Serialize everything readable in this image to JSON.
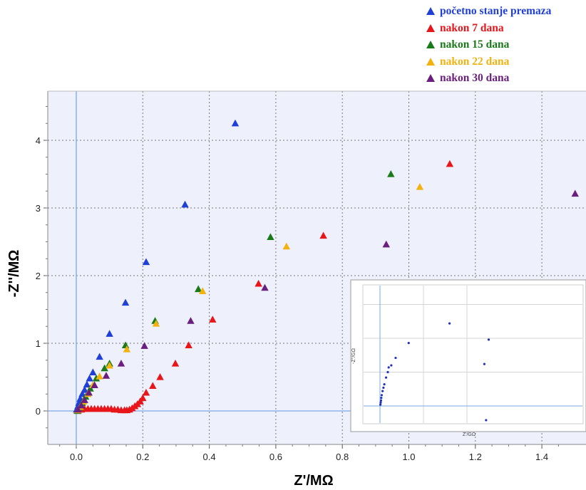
{
  "chart_data": {
    "type": "scatter",
    "xlabel": "Z'/MΩ",
    "ylabel": "-Z''/MΩ",
    "xlim": [
      -0.08,
      1.53
    ],
    "ylim": [
      -0.55,
      4.75
    ],
    "x_ticks": [
      "0.0",
      "0.2",
      "0.4",
      "0.6",
      "0.8",
      "1.0",
      "1.2",
      "1.4"
    ],
    "y_ticks": [
      "0",
      "1",
      "2",
      "3",
      "4"
    ],
    "grid": true,
    "legend_position": "top-right",
    "series": [
      {
        "name": "početno stanje premaza",
        "color": "#1f3fd6",
        "points": [
          [
            0.001,
            0.02
          ],
          [
            0.005,
            0.07
          ],
          [
            0.008,
            0.12
          ],
          [
            0.012,
            0.18
          ],
          [
            0.018,
            0.25
          ],
          [
            0.025,
            0.31
          ],
          [
            0.032,
            0.39
          ],
          [
            0.04,
            0.48
          ],
          [
            0.05,
            0.57
          ],
          [
            0.07,
            0.8
          ],
          [
            0.1,
            1.14
          ],
          [
            0.148,
            1.6
          ],
          [
            0.21,
            2.2
          ],
          [
            0.327,
            3.05
          ],
          [
            0.478,
            4.25
          ]
        ]
      },
      {
        "name": "nakon 7 dana",
        "color": "#e8151b",
        "points": [
          [
            0.005,
            0.0
          ],
          [
            0.015,
            0.02
          ],
          [
            0.025,
            0.03
          ],
          [
            0.035,
            0.03
          ],
          [
            0.045,
            0.03
          ],
          [
            0.055,
            0.03
          ],
          [
            0.065,
            0.03
          ],
          [
            0.075,
            0.03
          ],
          [
            0.085,
            0.03
          ],
          [
            0.095,
            0.03
          ],
          [
            0.105,
            0.03
          ],
          [
            0.115,
            0.02
          ],
          [
            0.125,
            0.02
          ],
          [
            0.135,
            0.01
          ],
          [
            0.145,
            0.01
          ],
          [
            0.152,
            0.01
          ],
          [
            0.16,
            0.02
          ],
          [
            0.168,
            0.04
          ],
          [
            0.176,
            0.07
          ],
          [
            0.184,
            0.1
          ],
          [
            0.192,
            0.14
          ],
          [
            0.2,
            0.19
          ],
          [
            0.21,
            0.27
          ],
          [
            0.23,
            0.37
          ],
          [
            0.252,
            0.5
          ],
          [
            0.298,
            0.7
          ],
          [
            0.338,
            0.97
          ],
          [
            0.41,
            1.35
          ],
          [
            0.548,
            1.88
          ],
          [
            0.743,
            2.59
          ],
          [
            1.123,
            3.65
          ]
        ]
      },
      {
        "name": "nakon 15 dana",
        "color": "#1a7a1a",
        "points": [
          [
            0.003,
            0.0
          ],
          [
            0.01,
            0.05
          ],
          [
            0.018,
            0.12
          ],
          [
            0.028,
            0.21
          ],
          [
            0.042,
            0.33
          ],
          [
            0.06,
            0.48
          ],
          [
            0.085,
            0.63
          ],
          [
            0.1,
            0.7
          ],
          [
            0.148,
            0.97
          ],
          [
            0.237,
            1.33
          ],
          [
            0.367,
            1.8
          ],
          [
            0.584,
            2.57
          ],
          [
            0.946,
            3.5
          ]
        ]
      },
      {
        "name": "nakon 22 dana",
        "color": "#f2b20f",
        "points": [
          [
            0.004,
            0.01
          ],
          [
            0.012,
            0.06
          ],
          [
            0.022,
            0.14
          ],
          [
            0.035,
            0.25
          ],
          [
            0.05,
            0.38
          ],
          [
            0.07,
            0.51
          ],
          [
            0.1,
            0.67
          ],
          [
            0.152,
            0.91
          ],
          [
            0.24,
            1.29
          ],
          [
            0.38,
            1.77
          ],
          [
            0.632,
            2.43
          ],
          [
            1.033,
            3.31
          ]
        ]
      },
      {
        "name": "nakon 30 dana",
        "color": "#6a1f7e",
        "points": [
          [
            0.005,
            0.02
          ],
          [
            0.015,
            0.08
          ],
          [
            0.025,
            0.16
          ],
          [
            0.038,
            0.27
          ],
          [
            0.055,
            0.38
          ],
          [
            0.09,
            0.52
          ],
          [
            0.135,
            0.7
          ],
          [
            0.205,
            0.96
          ],
          [
            0.344,
            1.33
          ],
          [
            0.567,
            1.82
          ],
          [
            0.932,
            2.46
          ],
          [
            1.5,
            3.21
          ]
        ]
      }
    ],
    "inset": {
      "xlabel": "Z'/GΩ",
      "ylabel": "-Z''/GΩ",
      "points": [
        [
          0.005,
          0.02
        ],
        [
          0.008,
          0.05
        ],
        [
          0.012,
          0.08
        ],
        [
          0.015,
          0.12
        ],
        [
          0.02,
          0.16
        ],
        [
          0.03,
          0.22
        ],
        [
          0.04,
          0.27
        ],
        [
          0.05,
          0.32
        ],
        [
          0.07,
          0.42
        ],
        [
          0.09,
          0.5
        ],
        [
          0.1,
          0.57
        ],
        [
          0.13,
          0.6
        ],
        [
          0.18,
          0.71
        ],
        [
          0.33,
          0.93
        ],
        [
          0.8,
          1.22
        ],
        [
          1.2,
          0.62
        ],
        [
          1.25,
          0.98
        ],
        [
          1.22,
          -0.21
        ]
      ]
    }
  }
}
